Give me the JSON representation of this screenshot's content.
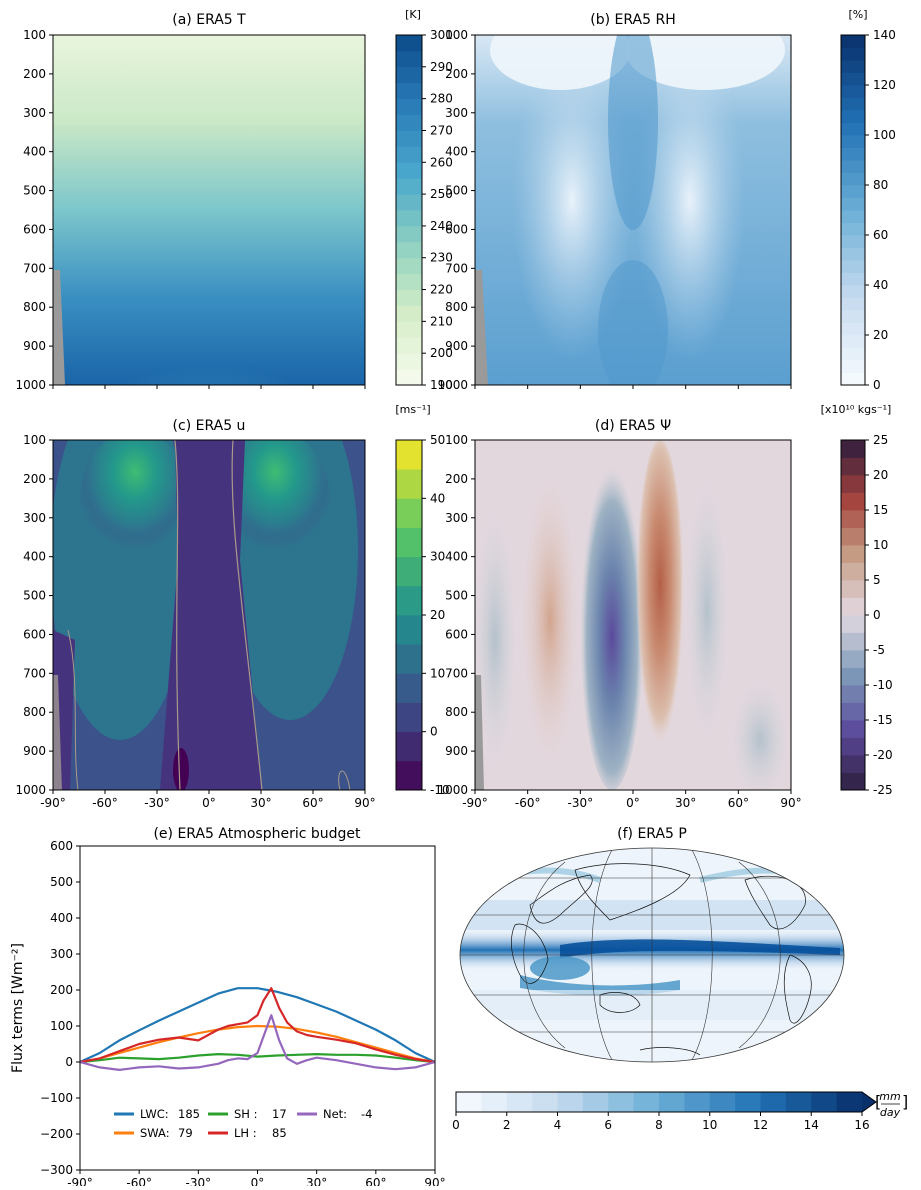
{
  "lat_ticks": [
    "-90°",
    "-60°",
    "-30°",
    "0°",
    "30°",
    "60°",
    "90°"
  ],
  "pressure_ticks": [
    "100",
    "200",
    "300",
    "400",
    "500",
    "600",
    "700",
    "800",
    "900",
    "1000"
  ],
  "panels": {
    "a": {
      "title": "(a) ERA5 T",
      "unit": "[K]",
      "cbar_ticks": [
        "190",
        "200",
        "210",
        "220",
        "230",
        "240",
        "250",
        "260",
        "270",
        "280",
        "290",
        "300"
      ],
      "cbar_colors": [
        "#f7fcf0",
        "#0b4a8a"
      ],
      "cbar_mid": "#4aa8cc"
    },
    "b": {
      "title": "(b) ERA5 RH",
      "unit": "[%]",
      "cbar_ticks": [
        "0",
        "20",
        "40",
        "60",
        "80",
        "100",
        "120",
        "140"
      ],
      "cbar_colors": [
        "#f7fbff",
        "#08306b"
      ]
    },
    "c": {
      "title": "(c) ERA5 u",
      "unit": "[ms⁻¹]",
      "cbar_ticks": [
        "-10",
        "0",
        "10",
        "20",
        "30",
        "40",
        "50"
      ],
      "cbar_colors": [
        "#440154",
        "#3b528b",
        "#21908d",
        "#5dc963",
        "#fde725"
      ]
    },
    "d": {
      "title": "(d) ERA5 Ψ",
      "unit": "[x10¹⁰ kgs⁻¹]",
      "cbar_ticks": [
        "-25",
        "-20",
        "-15",
        "-10",
        "-5",
        "0",
        "5",
        "10",
        "15",
        "20",
        "25"
      ],
      "cbar_colors": [
        "#2d1e3e",
        "#5b4a9c",
        "#7d9ab8",
        "#e2d9e2",
        "#c7a087",
        "#a3403b",
        "#2d1e3e"
      ]
    },
    "f": {
      "title": "(f) ERA5 P",
      "unit_num": "mm",
      "unit_den": "day",
      "cbar_ticks": [
        "0",
        "2",
        "4",
        "6",
        "8",
        "10",
        "12",
        "14",
        "16"
      ],
      "cbar_colors": [
        "#f7fbff",
        "#08306b"
      ]
    }
  },
  "chart_data": [
    {
      "type": "heatmap",
      "panel": "a",
      "title": "(a) ERA5 T",
      "xlim": [
        -90,
        90
      ],
      "ylim": [
        1000,
        100
      ],
      "colorbar_range": [
        190,
        300
      ],
      "description_values": {
        "surface_equator": 298,
        "top_polar": 220
      }
    },
    {
      "type": "heatmap",
      "panel": "b",
      "title": "(b) ERA5 RH",
      "xlim": [
        -90,
        90
      ],
      "ylim": [
        1000,
        100
      ],
      "colorbar_range": [
        0,
        140
      ]
    },
    {
      "type": "heatmap",
      "panel": "c",
      "title": "(c) ERA5 u",
      "xlim": [
        -90,
        90
      ],
      "ylim": [
        1000,
        100
      ],
      "colorbar_range": [
        -10,
        50
      ],
      "jets": [
        {
          "lat": -32,
          "p": 200,
          "u": 30
        },
        {
          "lat": 35,
          "p": 200,
          "u": 28
        }
      ]
    },
    {
      "type": "heatmap",
      "panel": "d",
      "title": "(d) ERA5 Ψ",
      "xlim": [
        -90,
        90
      ],
      "ylim": [
        1000,
        100
      ],
      "colorbar_range": [
        -25,
        25
      ],
      "cells": [
        {
          "lat": -12,
          "min": -12
        },
        {
          "lat": 13,
          "max": 12
        }
      ]
    },
    {
      "type": "line",
      "panel": "e",
      "title": "(e) ERA5 Atmospheric budget",
      "ylabel": "Flux terms [Wm⁻²]",
      "xlim": [
        -90,
        90
      ],
      "ylim": [
        -300,
        600
      ],
      "yticks": [
        "600",
        "500",
        "400",
        "300",
        "200",
        "100",
        "0",
        "−100",
        "−200",
        "−300"
      ],
      "series": [
        {
          "name": "LWC:",
          "mean": "185",
          "color": "#1f77b4",
          "x": [
            -90,
            -80,
            -70,
            -60,
            -50,
            -40,
            -30,
            -20,
            -10,
            0,
            5,
            10,
            20,
            30,
            40,
            50,
            60,
            70,
            80,
            90
          ],
          "y": [
            0,
            25,
            60,
            88,
            115,
            140,
            165,
            190,
            205,
            205,
            200,
            195,
            180,
            160,
            140,
            115,
            90,
            60,
            25,
            0
          ]
        },
        {
          "name": "SWA:",
          "mean": "79",
          "color": "#ff7f0e",
          "x": [
            -90,
            -80,
            -70,
            -60,
            -50,
            -40,
            -30,
            -20,
            -10,
            0,
            10,
            20,
            30,
            40,
            50,
            60,
            70,
            80,
            90
          ],
          "y": [
            0,
            10,
            25,
            40,
            55,
            68,
            80,
            90,
            97,
            100,
            98,
            92,
            82,
            70,
            55,
            40,
            25,
            10,
            0
          ]
        },
        {
          "name": "SH :",
          "mean": "17",
          "color": "#2ca02c",
          "x": [
            -90,
            -80,
            -70,
            -60,
            -50,
            -40,
            -30,
            -20,
            -10,
            0,
            10,
            20,
            30,
            40,
            50,
            60,
            70,
            80,
            90
          ],
          "y": [
            0,
            5,
            12,
            10,
            8,
            12,
            18,
            22,
            20,
            15,
            18,
            20,
            22,
            20,
            20,
            18,
            12,
            5,
            0
          ]
        },
        {
          "name": "LH :",
          "mean": "85",
          "color": "#d62728",
          "x": [
            -90,
            -80,
            -70,
            -60,
            -50,
            -40,
            -30,
            -25,
            -20,
            -15,
            -10,
            -5,
            0,
            3,
            7,
            11,
            15,
            20,
            25,
            30,
            40,
            50,
            60,
            70,
            80,
            90
          ],
          "y": [
            0,
            10,
            30,
            50,
            62,
            68,
            60,
            75,
            90,
            100,
            105,
            110,
            130,
            170,
            205,
            150,
            110,
            85,
            75,
            70,
            62,
            52,
            35,
            20,
            8,
            0
          ]
        },
        {
          "name": "Net:",
          "mean": "-4",
          "color": "#9467bd",
          "x": [
            -90,
            -80,
            -70,
            -60,
            -50,
            -40,
            -30,
            -25,
            -20,
            -15,
            -10,
            -5,
            0,
            3,
            7,
            11,
            15,
            20,
            25,
            30,
            40,
            50,
            60,
            70,
            80,
            90
          ],
          "y": [
            0,
            -15,
            -22,
            -15,
            -12,
            -18,
            -15,
            -10,
            -5,
            5,
            10,
            8,
            25,
            70,
            130,
            60,
            10,
            -5,
            5,
            12,
            5,
            -5,
            -15,
            -20,
            -15,
            0
          ]
        }
      ]
    },
    {
      "type": "heatmap",
      "panel": "f",
      "title": "(f) ERA5 P",
      "colorbar_range": [
        0,
        16
      ]
    }
  ]
}
